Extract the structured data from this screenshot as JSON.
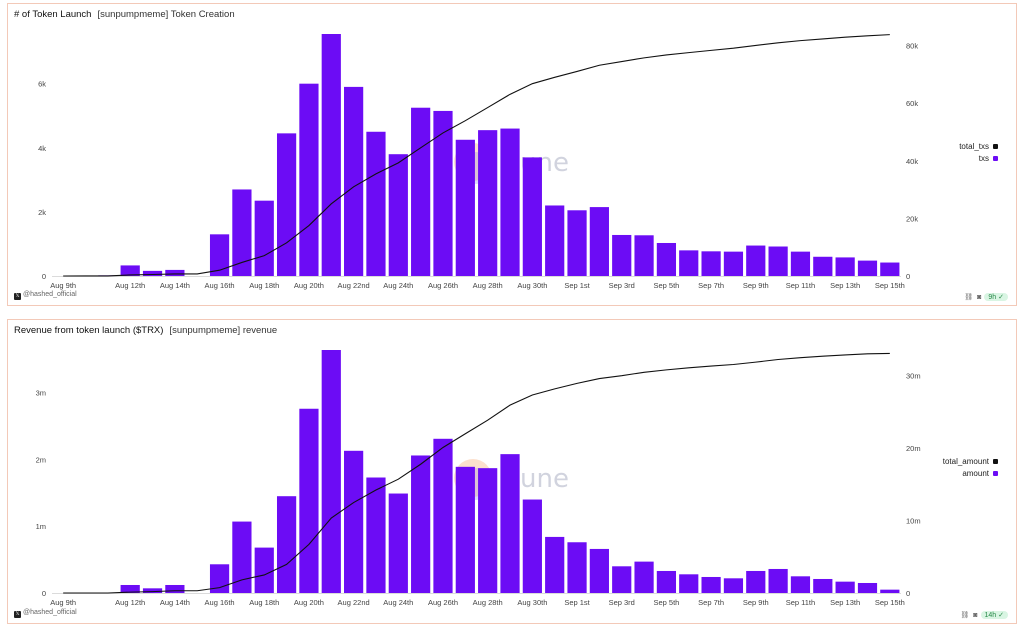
{
  "charts": [
    {
      "title": "# of Token Launch",
      "subtitle": "[sunpumpmeme] Token Creation",
      "credit": "@hashed_official",
      "age": "9h",
      "watermark": "Dune",
      "legend": [
        {
          "name": "total_txs",
          "color": "#111111"
        },
        {
          "name": "txs",
          "color": "#6c0cf5"
        }
      ]
    },
    {
      "title": "Revenue from token launch ($TRX)",
      "subtitle": "[sunpumpmeme] revenue",
      "credit": "@hashed_official",
      "age": "14h",
      "watermark": "Dune",
      "legend": [
        {
          "name": "total_amount",
          "color": "#111111"
        },
        {
          "name": "amount",
          "color": "#6c0cf5"
        }
      ]
    }
  ],
  "chart_data": [
    {
      "type": "bar",
      "title": "# of Token Launch",
      "categories": [
        "Aug 9th",
        "Aug 10th",
        "Aug 11th",
        "Aug 12th",
        "Aug 13th",
        "Aug 14th",
        "Aug 15th",
        "Aug 16th",
        "Aug 17th",
        "Aug 18th",
        "Aug 19th",
        "Aug 20th",
        "Aug 21st",
        "Aug 22nd",
        "Aug 23rd",
        "Aug 24th",
        "Aug 25th",
        "Aug 26th",
        "Aug 27th",
        "Aug 28th",
        "Aug 29th",
        "Aug 30th",
        "Aug 31st",
        "Sep 1st",
        "Sep 2nd",
        "Sep 3rd",
        "Sep 4th",
        "Sep 5th",
        "Sep 6th",
        "Sep 7th",
        "Sep 8th",
        "Sep 9th",
        "Sep 10th",
        "Sep 11th",
        "Sep 12th",
        "Sep 13th",
        "Sep 14th",
        "Sep 15th"
      ],
      "x_tick_labels": [
        "Aug 9th",
        "Aug 12th",
        "Aug 14th",
        "Aug 16th",
        "Aug 18th",
        "Aug 20th",
        "Aug 22nd",
        "Aug 24th",
        "Aug 26th",
        "Aug 28th",
        "Aug 30th",
        "Sep 1st",
        "Sep 3rd",
        "Sep 5th",
        "Sep 7th",
        "Sep 9th",
        "Sep 11th",
        "Sep 13th",
        "Sep 15th"
      ],
      "series": [
        {
          "name": "txs",
          "axis": "left",
          "kind": "bar",
          "color": "#6c0cf5",
          "values": [
            0,
            10,
            20,
            330,
            160,
            190,
            0,
            1300,
            2700,
            2350,
            4450,
            6000,
            7550,
            5900,
            4500,
            3800,
            5250,
            5150,
            4250,
            4550,
            4600,
            3700,
            2200,
            2050,
            2150,
            1280,
            1270,
            1030,
            800,
            770,
            760,
            950,
            920,
            760,
            600,
            580,
            480,
            420
          ]
        },
        {
          "name": "total_txs",
          "axis": "right",
          "kind": "line",
          "color": "#111111",
          "values": [
            0,
            10,
            30,
            360,
            520,
            710,
            710,
            2010,
            4710,
            7060,
            11510,
            17510,
            25060,
            30960,
            35460,
            39260,
            44510,
            49660,
            53910,
            58460,
            63060,
            66760,
            68960,
            71010,
            73160,
            74440,
            75710,
            76740,
            77540,
            78310,
            79070,
            80020,
            80940,
            81700,
            82300,
            82880,
            83360,
            83780
          ]
        }
      ],
      "left_axis": {
        "ylim": [
          0,
          7550
        ],
        "ticks": [
          0,
          2000,
          4000,
          6000
        ],
        "tick_labels": [
          "0",
          "2k",
          "4k",
          "6k"
        ]
      },
      "right_axis": {
        "ylim": [
          0,
          84000
        ],
        "ticks": [
          0,
          20000,
          40000,
          60000,
          80000
        ],
        "tick_labels": [
          "0",
          "20k",
          "40k",
          "60k",
          "80k"
        ]
      },
      "grid": false,
      "legend_position": "right"
    },
    {
      "type": "bar",
      "title": "Revenue from token launch ($TRX)",
      "categories": [
        "Aug 9th",
        "Aug 10th",
        "Aug 11th",
        "Aug 12th",
        "Aug 13th",
        "Aug 14th",
        "Aug 15th",
        "Aug 16th",
        "Aug 17th",
        "Aug 18th",
        "Aug 19th",
        "Aug 20th",
        "Aug 21st",
        "Aug 22nd",
        "Aug 23rd",
        "Aug 24th",
        "Aug 25th",
        "Aug 26th",
        "Aug 27th",
        "Aug 28th",
        "Aug 29th",
        "Aug 30th",
        "Aug 31st",
        "Sep 1st",
        "Sep 2nd",
        "Sep 3rd",
        "Sep 4th",
        "Sep 5th",
        "Sep 6th",
        "Sep 7th",
        "Sep 8th",
        "Sep 9th",
        "Sep 10th",
        "Sep 11th",
        "Sep 12th",
        "Sep 13th",
        "Sep 14th",
        "Sep 15th"
      ],
      "x_tick_labels": [
        "Aug 9th",
        "Aug 12th",
        "Aug 14th",
        "Aug 16th",
        "Aug 18th",
        "Aug 20th",
        "Aug 22nd",
        "Aug 24th",
        "Aug 26th",
        "Aug 28th",
        "Aug 30th",
        "Sep 1st",
        "Sep 3rd",
        "Sep 5th",
        "Sep 7th",
        "Sep 9th",
        "Sep 11th",
        "Sep 13th",
        "Sep 15th"
      ],
      "series": [
        {
          "name": "amount",
          "axis": "left",
          "kind": "bar",
          "color": "#6c0cf5",
          "values": [
            0,
            0,
            0,
            120000,
            70000,
            120000,
            0,
            430000,
            1070000,
            680000,
            1450000,
            2760000,
            3640000,
            2130000,
            1730000,
            1490000,
            2060000,
            2310000,
            1890000,
            1870000,
            2080000,
            1400000,
            840000,
            760000,
            660000,
            400000,
            470000,
            330000,
            280000,
            240000,
            220000,
            330000,
            360000,
            250000,
            210000,
            170000,
            150000,
            50000
          ]
        },
        {
          "name": "total_amount",
          "axis": "right",
          "kind": "line",
          "color": "#111111",
          "values": [
            0,
            0,
            0,
            120000,
            190000,
            310000,
            310000,
            740000,
            1810000,
            2490000,
            3940000,
            6700000,
            10340000,
            12470000,
            14200000,
            15690000,
            17750000,
            20060000,
            21950000,
            23820000,
            25900000,
            27300000,
            28140000,
            28900000,
            29560000,
            29960000,
            30430000,
            30760000,
            31040000,
            31280000,
            31500000,
            31830000,
            32190000,
            32440000,
            32650000,
            32820000,
            32970000,
            33020000
          ]
        }
      ],
      "left_axis": {
        "ylim": [
          0,
          3640000
        ],
        "ticks": [
          0,
          1000000,
          2000000,
          3000000
        ],
        "tick_labels": [
          "0",
          "1m",
          "2m",
          "3m"
        ]
      },
      "right_axis": {
        "ylim": [
          0,
          33500000
        ],
        "ticks": [
          0,
          10000000,
          20000000,
          30000000
        ],
        "tick_labels": [
          "0",
          "10m",
          "20m",
          "30m"
        ]
      },
      "grid": false,
      "legend_position": "right"
    }
  ]
}
